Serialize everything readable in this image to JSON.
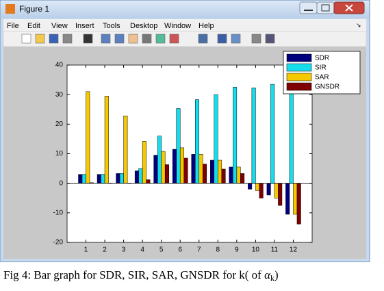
{
  "window": {
    "title": "Figure 1",
    "menu": [
      "File",
      "Edit",
      "View",
      "Insert",
      "Tools",
      "Desktop",
      "Window",
      "Help"
    ]
  },
  "chart_data": {
    "type": "bar",
    "x": [
      1,
      2,
      3,
      4,
      5,
      6,
      7,
      8,
      9,
      10,
      11,
      12
    ],
    "xlim": [
      0,
      13
    ],
    "xticks": [
      1,
      2,
      3,
      4,
      5,
      6,
      7,
      8,
      9,
      10,
      11,
      12
    ],
    "ylim": [
      -20,
      40
    ],
    "yticks": [
      -20,
      -10,
      0,
      10,
      20,
      30,
      40
    ],
    "grid": false,
    "legend": "northeast",
    "series": [
      {
        "name": "SDR",
        "color": "#00007f",
        "values": [
          3,
          3,
          3.3,
          4.2,
          9.5,
          11.5,
          9.8,
          7.8,
          5.5,
          -2,
          -4,
          -10.5
        ]
      },
      {
        "name": "SIR",
        "color": "#17dcec",
        "values": [
          3,
          3,
          3.3,
          5,
          16,
          25.3,
          28.3,
          30,
          32.5,
          32.3,
          33.5,
          34
        ]
      },
      {
        "name": "SAR",
        "color": "#f5c800",
        "values": [
          31,
          29.5,
          22.8,
          14.2,
          10.8,
          12,
          9.8,
          7.8,
          5.5,
          -2.5,
          -5,
          -10.5
        ]
      },
      {
        "name": "GNSDR",
        "color": "#7f0000",
        "values": [
          0.2,
          0.1,
          0.1,
          1.2,
          6.3,
          8.5,
          6.5,
          4.8,
          3.3,
          -5,
          -7.5,
          -13.8
        ]
      }
    ]
  },
  "caption": {
    "text": "Fig 4: Bar graph for SDR, SIR, SAR, GNSDR for k( of ",
    "symbol": "α",
    "subscript": "k",
    "end": ")"
  }
}
